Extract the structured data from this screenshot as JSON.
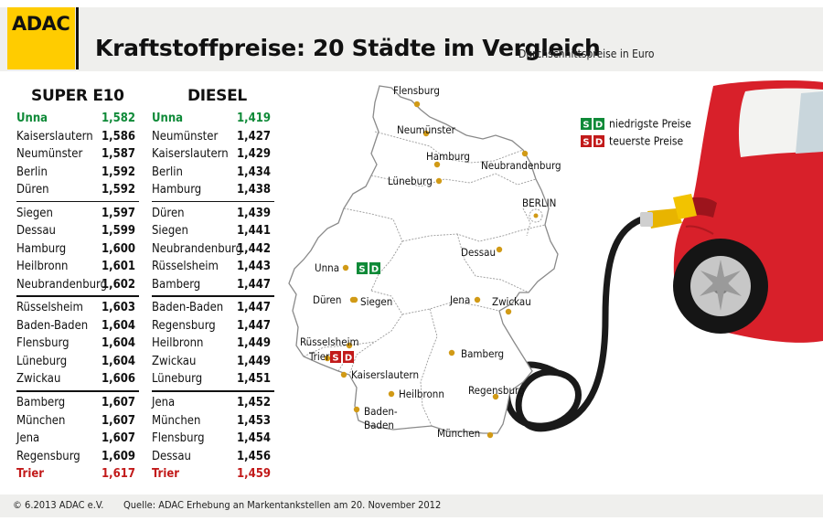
{
  "brand": {
    "logo_text": "ADAC"
  },
  "header": {
    "title": "Kraftstoffpreise: 20 Städte im Vergleich",
    "subtitle": "Durchschnittspreise in Euro"
  },
  "colors": {
    "lowest": "#0f8a38",
    "highest": "#c21a1a",
    "accent": "#ffcc00",
    "dot": "#d19a16"
  },
  "chart_data": {
    "type": "table",
    "tables": [
      {
        "title": "SUPER E10",
        "rows": [
          {
            "city": "Unna",
            "price": "1,582"
          },
          {
            "city": "Kaiserslautern",
            "price": "1,586"
          },
          {
            "city": "Neumünster",
            "price": "1,587"
          },
          {
            "city": "Berlin",
            "price": "1,592"
          },
          {
            "city": "Düren",
            "price": "1,592"
          },
          {
            "city": "Siegen",
            "price": "1,597"
          },
          {
            "city": "Dessau",
            "price": "1,599"
          },
          {
            "city": "Hamburg",
            "price": "1,600"
          },
          {
            "city": "Heilbronn",
            "price": "1,601"
          },
          {
            "city": "Neubrandenburg",
            "price": "1,602"
          },
          {
            "city": "Rüsselsheim",
            "price": "1,603"
          },
          {
            "city": "Baden-Baden",
            "price": "1,604"
          },
          {
            "city": "Flensburg",
            "price": "1,604"
          },
          {
            "city": "Lüneburg",
            "price": "1,604"
          },
          {
            "city": "Zwickau",
            "price": "1,606"
          },
          {
            "city": "Bamberg",
            "price": "1,607"
          },
          {
            "city": "München",
            "price": "1,607"
          },
          {
            "city": "Jena",
            "price": "1,607"
          },
          {
            "city": "Regensburg",
            "price": "1,609"
          },
          {
            "city": "Trier",
            "price": "1,617"
          }
        ]
      },
      {
        "title": "DIESEL",
        "rows": [
          {
            "city": "Unna",
            "price": "1,419"
          },
          {
            "city": "Neumünster",
            "price": "1,427"
          },
          {
            "city": "Kaiserslautern",
            "price": "1,429"
          },
          {
            "city": "Berlin",
            "price": "1,434"
          },
          {
            "city": "Hamburg",
            "price": "1,438"
          },
          {
            "city": "Düren",
            "price": "1,439"
          },
          {
            "city": "Siegen",
            "price": "1,441"
          },
          {
            "city": "Neubrandenburg",
            "price": "1,442"
          },
          {
            "city": "Rüsselsheim",
            "price": "1,443"
          },
          {
            "city": "Bamberg",
            "price": "1,447"
          },
          {
            "city": "Baden-Baden",
            "price": "1,447"
          },
          {
            "city": "Regensburg",
            "price": "1,447"
          },
          {
            "city": "Heilbronn",
            "price": "1,449"
          },
          {
            "city": "Zwickau",
            "price": "1,449"
          },
          {
            "city": "Lüneburg",
            "price": "1,451"
          },
          {
            "city": "Jena",
            "price": "1,452"
          },
          {
            "city": "München",
            "price": "1,453"
          },
          {
            "city": "Flensburg",
            "price": "1,454"
          },
          {
            "city": "Dessau",
            "price": "1,456"
          },
          {
            "city": "Trier",
            "price": "1,459"
          }
        ]
      }
    ]
  },
  "map": {
    "legend": {
      "badge_s": "S",
      "badge_d": "D",
      "lowest_label": "niedrigste Preise",
      "highest_label": "teuerste Preise"
    },
    "cities": [
      {
        "name": "Flensburg"
      },
      {
        "name": "Neumünster"
      },
      {
        "name": "Hamburg"
      },
      {
        "name": "Neubrandenburg"
      },
      {
        "name": "Lüneburg"
      },
      {
        "name": "BERLIN"
      },
      {
        "name": "Dessau"
      },
      {
        "name": "Unna"
      },
      {
        "name": "Düren"
      },
      {
        "name": "Siegen"
      },
      {
        "name": "Jena"
      },
      {
        "name": "Zwickau"
      },
      {
        "name": "Rüsselsheim"
      },
      {
        "name": "Trier"
      },
      {
        "name": "Bamberg"
      },
      {
        "name": "Kaiserslautern"
      },
      {
        "name": "Heilbronn"
      },
      {
        "name": "Regensburg"
      },
      {
        "name": "Baden-"
      },
      {
        "name": "Baden"
      },
      {
        "name": "München"
      }
    ]
  },
  "footer": {
    "copyright": "© 6.2013 ADAC e.V.",
    "source": "Quelle: ADAC Erhebung an Markentankstellen am 20. November 2012"
  }
}
